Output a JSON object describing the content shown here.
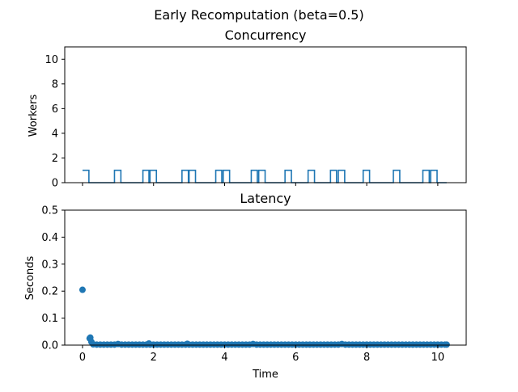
{
  "figure": {
    "suptitle": "Early Recomputation (beta=0.5)"
  },
  "chart_data": [
    {
      "type": "line",
      "title": "Concurrency",
      "xlabel": "",
      "ylabel": "Workers",
      "xlim": [
        -0.5,
        10.8
      ],
      "ylim": [
        0,
        11
      ],
      "yticks": [
        0,
        2,
        4,
        6,
        8,
        10
      ],
      "xticks": [
        0,
        2,
        4,
        6,
        8,
        10
      ],
      "grid": false,
      "color": "#1f77b4",
      "series": [
        {
          "step": "post",
          "x": [
            0.0,
            0.18,
            0.9,
            1.08,
            1.7,
            1.87,
            1.9,
            2.08,
            2.8,
            2.98,
            3.0,
            3.18,
            3.75,
            3.92,
            3.96,
            4.14,
            4.75,
            4.92,
            4.96,
            5.14,
            5.7,
            5.88,
            6.35,
            6.53,
            6.98,
            7.15,
            7.2,
            7.38,
            7.9,
            8.08,
            8.75,
            8.93,
            9.58,
            9.76,
            9.8,
            9.98,
            10.25
          ],
          "y": [
            1,
            0,
            1,
            0,
            1,
            0,
            1,
            0,
            1,
            0,
            1,
            0,
            1,
            0,
            1,
            0,
            1,
            0,
            1,
            0,
            1,
            0,
            1,
            0,
            1,
            0,
            1,
            0,
            1,
            0,
            1,
            0,
            1,
            0,
            1,
            0,
            0
          ]
        }
      ]
    },
    {
      "type": "scatter",
      "title": "Latency",
      "xlabel": "Time",
      "ylabel": "Seconds",
      "xlim": [
        -0.5,
        10.8
      ],
      "ylim": [
        0,
        0.5
      ],
      "yticks": [
        0.0,
        0.1,
        0.2,
        0.3,
        0.4,
        0.5
      ],
      "xticks": [
        0,
        2,
        4,
        6,
        8,
        10
      ],
      "grid": false,
      "color": "#1f77b4",
      "series": [
        {
          "x": [
            0.0,
            0.2,
            0.22,
            0.25,
            0.3,
            0.4,
            0.5,
            0.6,
            0.7,
            0.8,
            0.9,
            1.0,
            1.1,
            1.2,
            1.3,
            1.4,
            1.5,
            1.6,
            1.7,
            1.8,
            1.87,
            1.9,
            2.0,
            2.1,
            2.2,
            2.3,
            2.4,
            2.5,
            2.6,
            2.7,
            2.8,
            2.9,
            2.95,
            3.0,
            3.1,
            3.2,
            3.3,
            3.4,
            3.5,
            3.6,
            3.7,
            3.8,
            3.9,
            4.0,
            4.1,
            4.2,
            4.3,
            4.4,
            4.5,
            4.6,
            4.7,
            4.8,
            4.9,
            5.0,
            5.1,
            5.2,
            5.3,
            5.4,
            5.5,
            5.6,
            5.7,
            5.8,
            5.9,
            6.0,
            6.1,
            6.2,
            6.3,
            6.4,
            6.5,
            6.6,
            6.7,
            6.8,
            6.9,
            7.0,
            7.1,
            7.2,
            7.3,
            7.4,
            7.5,
            7.6,
            7.7,
            7.8,
            7.9,
            8.0,
            8.1,
            8.2,
            8.3,
            8.4,
            8.5,
            8.6,
            8.7,
            8.8,
            8.9,
            9.0,
            9.1,
            9.2,
            9.3,
            9.4,
            9.5,
            9.6,
            9.7,
            9.8,
            9.9,
            10.0,
            10.1,
            10.2,
            10.25
          ],
          "y": [
            0.205,
            0.025,
            0.028,
            0.012,
            0.003,
            0.002,
            0.002,
            0.002,
            0.002,
            0.002,
            0.002,
            0.004,
            0.002,
            0.002,
            0.002,
            0.002,
            0.002,
            0.002,
            0.002,
            0.002,
            0.006,
            0.002,
            0.002,
            0.002,
            0.002,
            0.002,
            0.002,
            0.002,
            0.002,
            0.002,
            0.002,
            0.002,
            0.005,
            0.002,
            0.002,
            0.002,
            0.002,
            0.002,
            0.002,
            0.002,
            0.002,
            0.002,
            0.002,
            0.002,
            0.002,
            0.002,
            0.002,
            0.002,
            0.002,
            0.002,
            0.002,
            0.004,
            0.002,
            0.002,
            0.002,
            0.002,
            0.002,
            0.002,
            0.002,
            0.002,
            0.002,
            0.002,
            0.002,
            0.002,
            0.002,
            0.002,
            0.002,
            0.002,
            0.002,
            0.002,
            0.002,
            0.002,
            0.002,
            0.002,
            0.002,
            0.002,
            0.004,
            0.002,
            0.002,
            0.002,
            0.002,
            0.002,
            0.002,
            0.002,
            0.002,
            0.002,
            0.002,
            0.002,
            0.002,
            0.002,
            0.002,
            0.002,
            0.002,
            0.002,
            0.002,
            0.002,
            0.002,
            0.002,
            0.002,
            0.002,
            0.002,
            0.002,
            0.002,
            0.002,
            0.002,
            0.002,
            0.002
          ]
        }
      ]
    }
  ]
}
